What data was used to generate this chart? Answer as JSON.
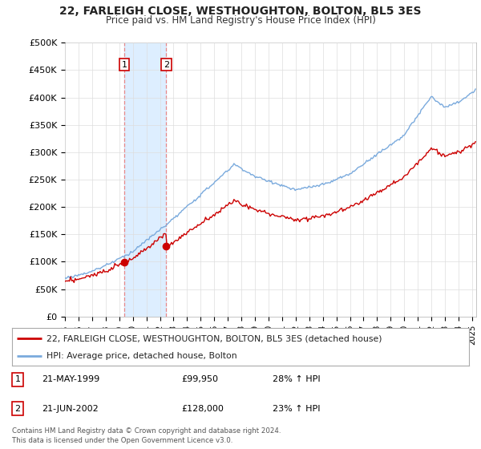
{
  "title": "22, FARLEIGH CLOSE, WESTHOUGHTON, BOLTON, BL5 3ES",
  "subtitle": "Price paid vs. HM Land Registry's House Price Index (HPI)",
  "ylabel_ticks": [
    "£0",
    "£50K",
    "£100K",
    "£150K",
    "£200K",
    "£250K",
    "£300K",
    "£350K",
    "£400K",
    "£450K",
    "£500K"
  ],
  "ylim": [
    0,
    500000
  ],
  "xlim_start": 1995.0,
  "xlim_end": 2025.3,
  "transaction1_date": 1999.38,
  "transaction1_price": 99950,
  "transaction2_date": 2002.47,
  "transaction2_price": 128000,
  "legend_line1": "22, FARLEIGH CLOSE, WESTHOUGHTON, BOLTON, BL5 3ES (detached house)",
  "legend_line2": "HPI: Average price, detached house, Bolton",
  "table_row1": [
    "1",
    "21-MAY-1999",
    "£99,950",
    "28% ↑ HPI"
  ],
  "table_row2": [
    "2",
    "21-JUN-2002",
    "£128,000",
    "23% ↑ HPI"
  ],
  "footnote": "Contains HM Land Registry data © Crown copyright and database right 2024.\nThis data is licensed under the Open Government Licence v3.0.",
  "line_color_red": "#cc0000",
  "line_color_blue": "#7aaadd",
  "vline_color": "#e88888",
  "span_color": "#ddeeff",
  "background_color": "#ffffff",
  "grid_color": "#dddddd"
}
